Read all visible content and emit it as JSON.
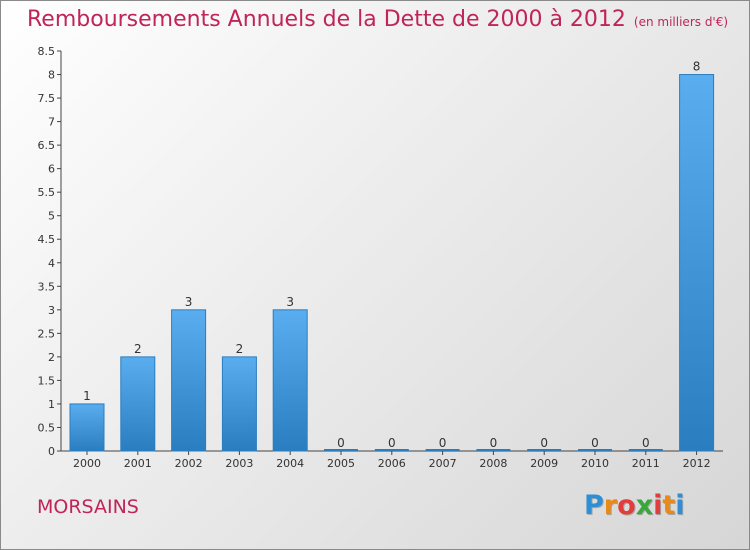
{
  "title": "Remboursements Annuels de la Dette de 2000 à 2012",
  "subtitle": "(en milliers d'€)",
  "commune": "MORSAINS",
  "logo": {
    "letters": [
      "P",
      "r",
      "o",
      "x",
      "i",
      "t",
      "i"
    ],
    "colors": [
      "#2e8fd6",
      "#e88a1a",
      "#e23c3c",
      "#39a83a",
      "#e23c3c",
      "#e88a1a",
      "#2e8fd6"
    ]
  },
  "colors": {
    "accent": "#c0245a",
    "bar_light": "#5aaef0",
    "bar_dark": "#2a7ec0"
  },
  "chart_data": {
    "type": "bar",
    "title": "Remboursements Annuels de la Dette de 2000 à 2012",
    "subtitle": "(en milliers d'€)",
    "categories": [
      "2000",
      "2001",
      "2002",
      "2003",
      "2004",
      "2005",
      "2006",
      "2007",
      "2008",
      "2009",
      "2010",
      "2011",
      "2012"
    ],
    "values": [
      1,
      2,
      3,
      2,
      3,
      0,
      0,
      0,
      0,
      0,
      0,
      0,
      8
    ],
    "value_labels": [
      "1",
      "2",
      "3",
      "2",
      "3",
      "0",
      "0",
      "0",
      "0",
      "0",
      "0",
      "0",
      "8"
    ],
    "ylim": [
      0,
      8.5
    ],
    "yticks": [
      0,
      0.5,
      1,
      1.5,
      2,
      2.5,
      3,
      3.5,
      4,
      4.5,
      5,
      5.5,
      6,
      6.5,
      7,
      7.5,
      8,
      8.5
    ],
    "ytick_labels": [
      "0",
      "0.5",
      "1",
      "1.5",
      "2",
      "2.5",
      "3",
      "3.5",
      "4",
      "4.5",
      "5",
      "5.5",
      "6",
      "6.5",
      "7",
      "7.5",
      "8",
      "8.5"
    ],
    "xlabel": "",
    "ylabel": "",
    "grid": false,
    "legend": "none"
  }
}
